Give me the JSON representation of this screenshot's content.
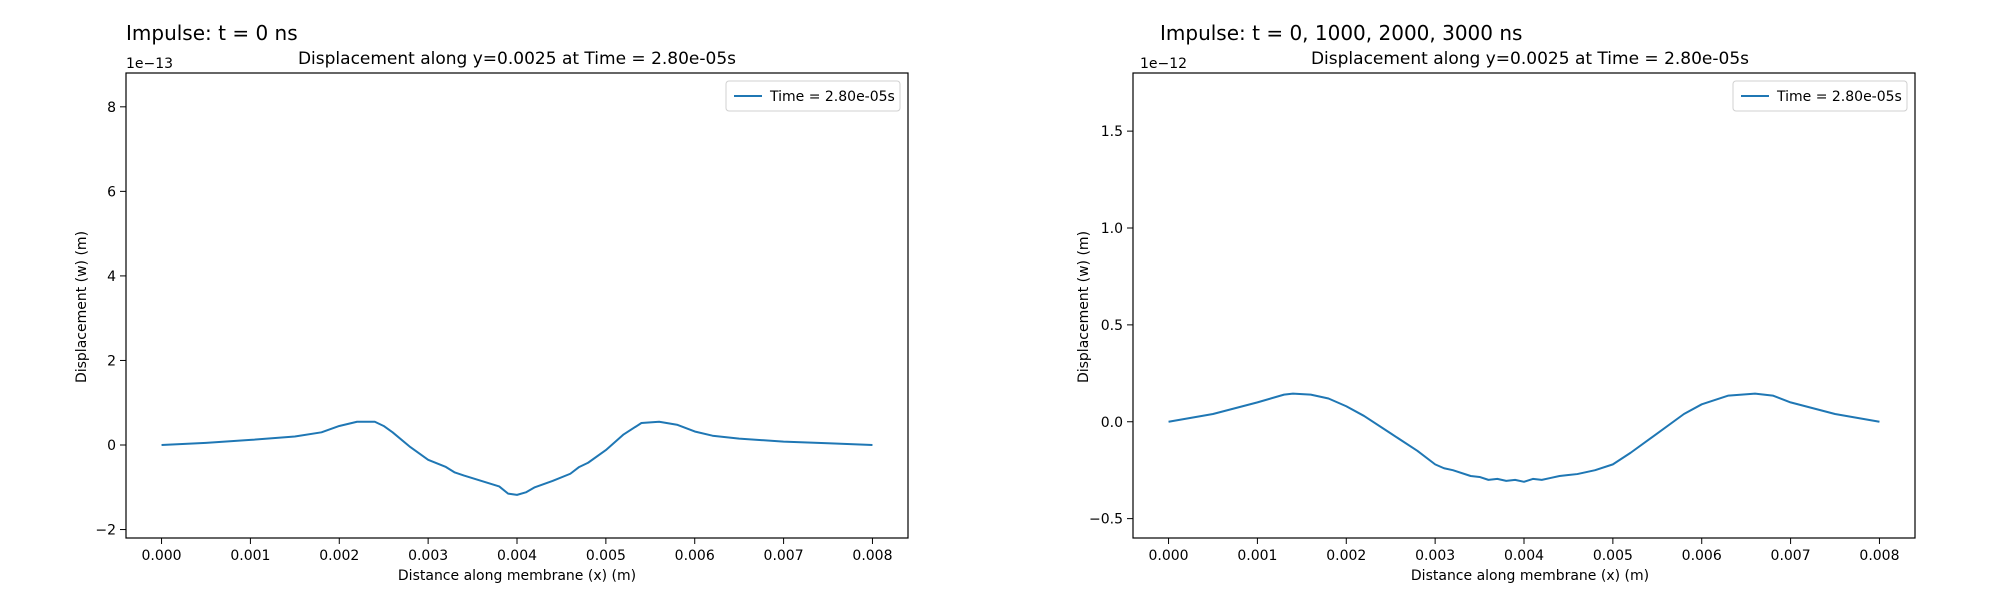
{
  "chart_data": [
    {
      "type": "line",
      "panel_title": "Impulse: t = 0 ns",
      "title": "Displacement along y=0.0025 at Time = 2.80e-05s",
      "xlabel": "Distance along membrane (x) (m)",
      "ylabel": "Displacement (w) (m)",
      "y_offset_label": "1e−13",
      "xlim": [
        -0.0004,
        0.0084
      ],
      "ylim": [
        -2.2,
        8.8
      ],
      "xticks": [
        0.0,
        0.001,
        0.002,
        0.003,
        0.004,
        0.005,
        0.006,
        0.007,
        0.008
      ],
      "xtick_labels": [
        "0.000",
        "0.001",
        "0.002",
        "0.003",
        "0.004",
        "0.005",
        "0.006",
        "0.007",
        "0.008"
      ],
      "yticks": [
        -2,
        0,
        2,
        4,
        6,
        8
      ],
      "ytick_labels": [
        "−2",
        "0",
        "2",
        "4",
        "6",
        "8"
      ],
      "grid": false,
      "legend": "upper right",
      "color": "#1f77b4",
      "series": [
        {
          "name": "Time = 2.80e-05s",
          "x": [
            0.0,
            0.0005,
            0.001,
            0.0015,
            0.0018,
            0.002,
            0.0022,
            0.0024,
            0.0025,
            0.0026,
            0.0028,
            0.003,
            0.0032,
            0.0033,
            0.0034,
            0.0036,
            0.0038,
            0.0039,
            0.004,
            0.0041,
            0.0042,
            0.0044,
            0.0046,
            0.0047,
            0.0048,
            0.005,
            0.0052,
            0.0054,
            0.0056,
            0.0058,
            0.006,
            0.0062,
            0.0065,
            0.007,
            0.0075,
            0.008
          ],
          "y": [
            0.0,
            0.05,
            0.12,
            0.2,
            0.3,
            0.45,
            0.55,
            0.55,
            0.45,
            0.3,
            -0.05,
            -0.35,
            -0.52,
            -0.65,
            -0.72,
            -0.85,
            -0.98,
            -1.15,
            -1.18,
            -1.12,
            -1.0,
            -0.85,
            -0.68,
            -0.52,
            -0.42,
            -0.12,
            0.25,
            0.52,
            0.55,
            0.48,
            0.32,
            0.22,
            0.15,
            0.08,
            0.04,
            0.0
          ]
        }
      ]
    },
    {
      "type": "line",
      "panel_title": "Impulse: t = 0, 1000, 2000, 3000 ns",
      "title": "Displacement along y=0.0025 at Time = 2.80e-05s",
      "xlabel": "Distance along membrane (x) (m)",
      "ylabel": "Displacement (w) (m)",
      "y_offset_label": "1e−12",
      "xlim": [
        -0.0004,
        0.0084
      ],
      "ylim": [
        -0.6,
        1.8
      ],
      "xticks": [
        0.0,
        0.001,
        0.002,
        0.003,
        0.004,
        0.005,
        0.006,
        0.007,
        0.008
      ],
      "xtick_labels": [
        "0.000",
        "0.001",
        "0.002",
        "0.003",
        "0.004",
        "0.005",
        "0.006",
        "0.007",
        "0.008"
      ],
      "yticks": [
        -0.5,
        0.0,
        0.5,
        1.0,
        1.5
      ],
      "ytick_labels": [
        "−0.5",
        "0.0",
        "0.5",
        "1.0",
        "1.5"
      ],
      "grid": false,
      "legend": "upper right",
      "color": "#1f77b4",
      "series": [
        {
          "name": "Time = 2.80e-05s",
          "x": [
            0.0,
            0.0005,
            0.001,
            0.0013,
            0.0014,
            0.0016,
            0.0018,
            0.002,
            0.0022,
            0.0025,
            0.0028,
            0.003,
            0.0031,
            0.0032,
            0.0034,
            0.0035,
            0.0036,
            0.0037,
            0.0038,
            0.0039,
            0.004,
            0.0041,
            0.0042,
            0.0043,
            0.0044,
            0.0045,
            0.0046,
            0.0048,
            0.005,
            0.0052,
            0.0055,
            0.0058,
            0.006,
            0.0063,
            0.0066,
            0.0068,
            0.007,
            0.0075,
            0.008
          ],
          "y": [
            0.0,
            0.04,
            0.1,
            0.14,
            0.145,
            0.14,
            0.12,
            0.08,
            0.03,
            -0.06,
            -0.15,
            -0.22,
            -0.24,
            -0.25,
            -0.28,
            -0.285,
            -0.3,
            -0.295,
            -0.305,
            -0.3,
            -0.31,
            -0.295,
            -0.3,
            -0.29,
            -0.28,
            -0.275,
            -0.27,
            -0.25,
            -0.22,
            -0.16,
            -0.06,
            0.04,
            0.09,
            0.135,
            0.145,
            0.135,
            0.1,
            0.04,
            0.0
          ]
        }
      ]
    }
  ]
}
